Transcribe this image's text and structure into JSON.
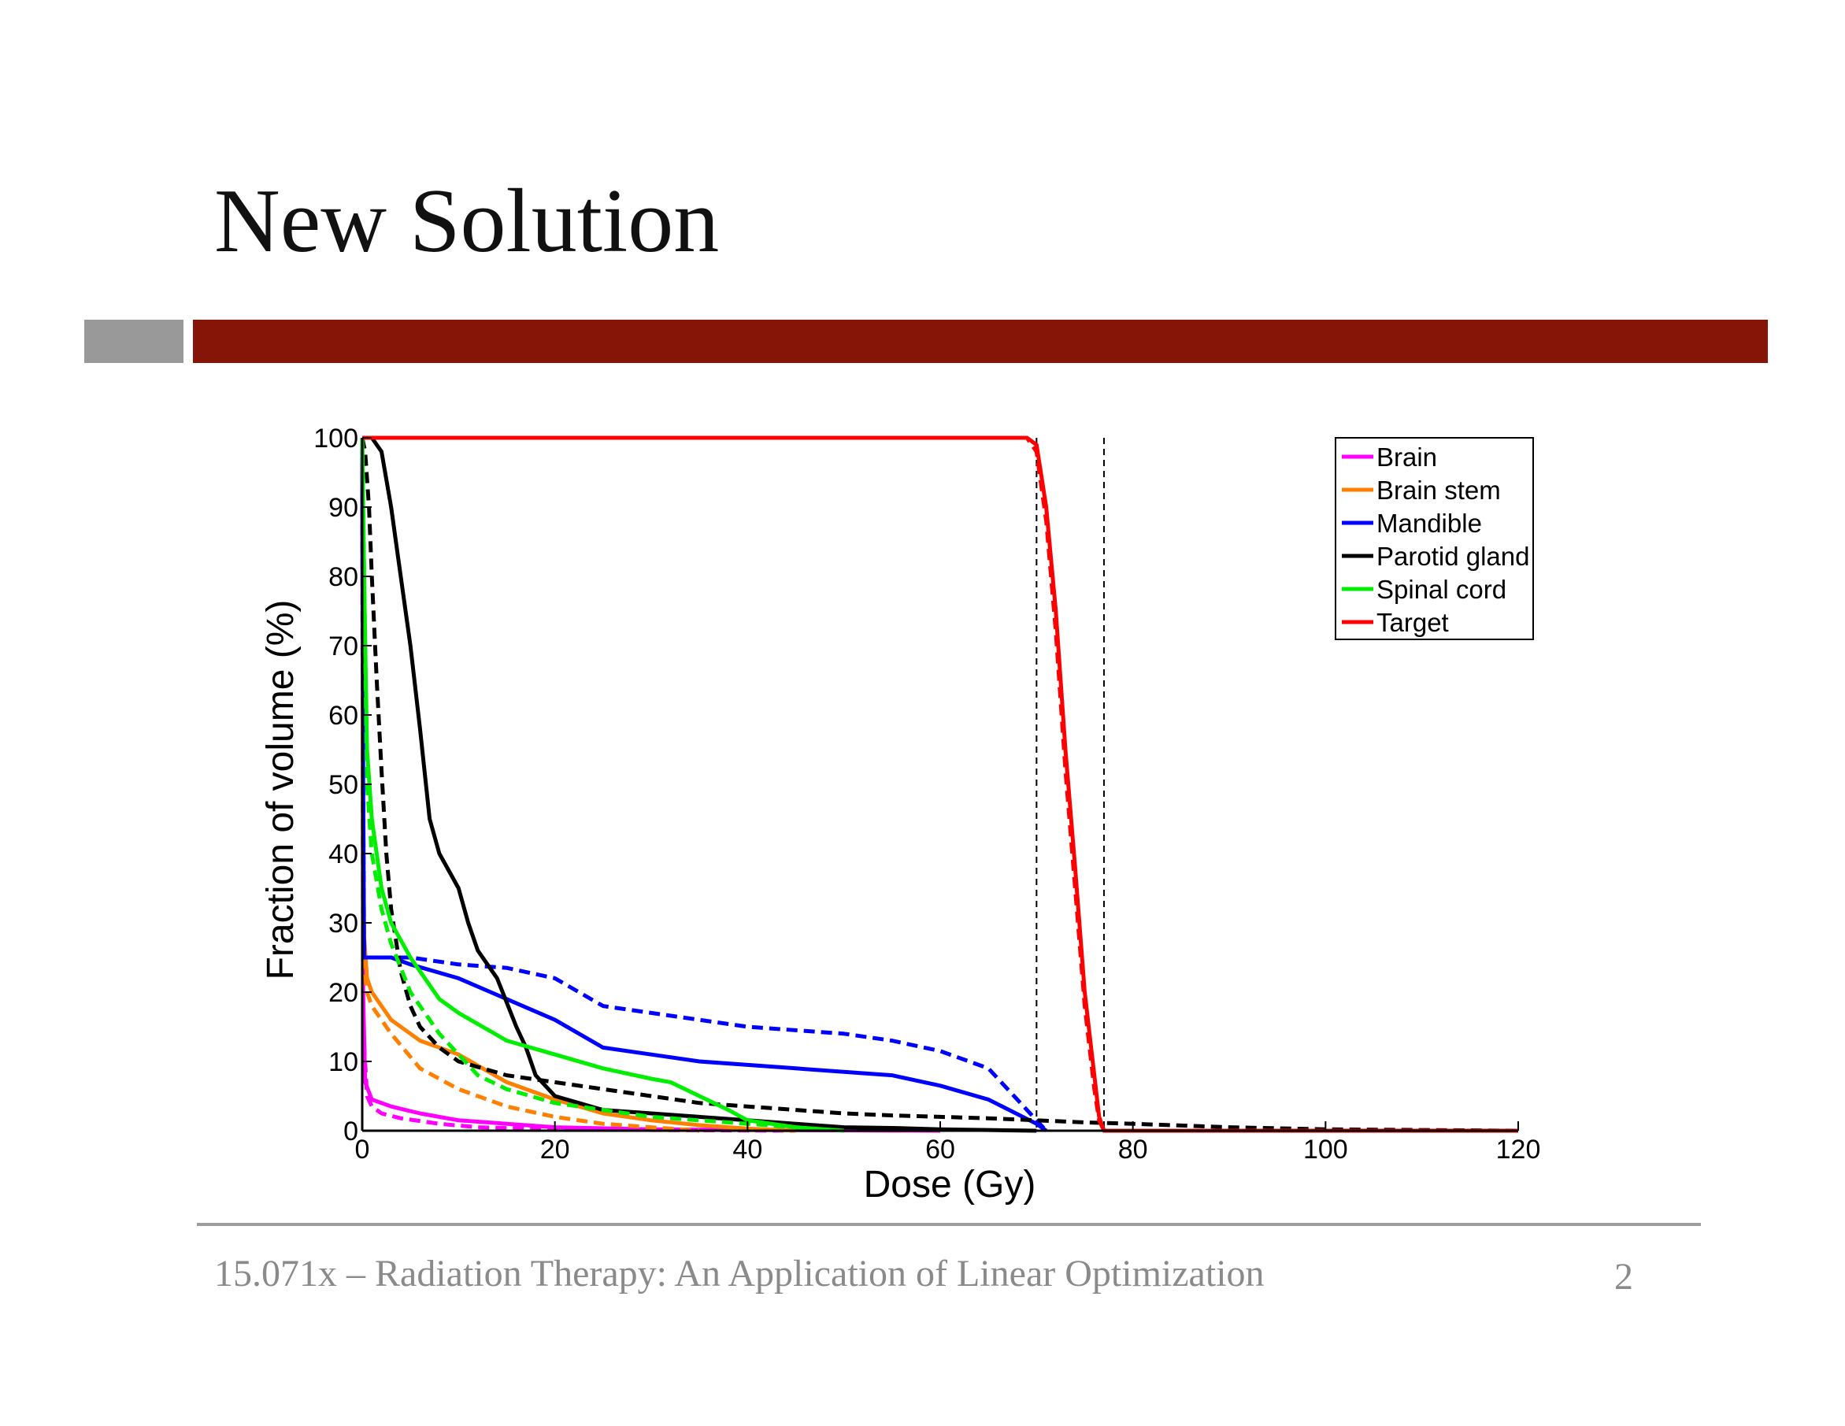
{
  "slide": {
    "title": "New Solution",
    "footer": "15.071x – Radiation Therapy: An Application of Linear Optimization",
    "page_number": "2"
  },
  "chart_data": {
    "type": "line",
    "title": "",
    "xlabel": "Dose (Gy)",
    "ylabel": "Fraction of volume (%)",
    "xlim": [
      0,
      120
    ],
    "ylim": [
      0,
      100
    ],
    "xticks": [
      0,
      20,
      40,
      60,
      80,
      100,
      120
    ],
    "yticks": [
      0,
      10,
      20,
      30,
      40,
      50,
      60,
      70,
      80,
      90,
      100
    ],
    "grid": false,
    "legend_position": "top-right",
    "colors": {
      "brain": "#ff00ff",
      "brain_stem": "#ff8000",
      "mandible": "#0000ff",
      "parotid": "#000000",
      "spinal_cord": "#00ee00",
      "target": "#ff0000"
    },
    "legend": [
      {
        "label": "Brain",
        "color": "#ff00ff"
      },
      {
        "label": "Brain stem",
        "color": "#ff8000"
      },
      {
        "label": "Mandible",
        "color": "#0000ff"
      },
      {
        "label": "Parotid gland",
        "color": "#000000"
      },
      {
        "label": "Spinal cord",
        "color": "#00ee00"
      },
      {
        "label": "Target",
        "color": "#ff0000"
      }
    ],
    "reference_lines": [
      {
        "x": 70,
        "style": "dashed",
        "color": "#000000"
      },
      {
        "x": 77,
        "style": "dashed",
        "color": "#000000"
      }
    ],
    "series": [
      {
        "color": "#ff00ff",
        "style": "solid",
        "points": [
          [
            0,
            100
          ],
          [
            0.1,
            20
          ],
          [
            0.3,
            7
          ],
          [
            1,
            4.5
          ],
          [
            3,
            3.5
          ],
          [
            6,
            2.5
          ],
          [
            10,
            1.5
          ],
          [
            15,
            1
          ],
          [
            20,
            0.5
          ],
          [
            30,
            0.2
          ],
          [
            40,
            0.1
          ],
          [
            60,
            0
          ]
        ]
      },
      {
        "color": "#ff00ff",
        "style": "dashed",
        "points": [
          [
            0,
            100
          ],
          [
            0.1,
            15
          ],
          [
            0.5,
            5
          ],
          [
            1,
            3.5
          ],
          [
            2,
            2.5
          ],
          [
            4,
            1.8
          ],
          [
            8,
            1
          ],
          [
            12,
            0.5
          ],
          [
            20,
            0.2
          ],
          [
            30,
            0.1
          ],
          [
            45,
            0
          ]
        ]
      },
      {
        "color": "#ff8000",
        "style": "solid",
        "points": [
          [
            0,
            100
          ],
          [
            0.1,
            30
          ],
          [
            0.5,
            22
          ],
          [
            1,
            20
          ],
          [
            3,
            16
          ],
          [
            6,
            13
          ],
          [
            10,
            11
          ],
          [
            15,
            7
          ],
          [
            20,
            4.5
          ],
          [
            25,
            2.5
          ],
          [
            30,
            1.5
          ],
          [
            35,
            0.8
          ],
          [
            40,
            0.3
          ],
          [
            45,
            0
          ]
        ]
      },
      {
        "color": "#ff8000",
        "style": "dashed",
        "points": [
          [
            0,
            100
          ],
          [
            0.1,
            25
          ],
          [
            0.5,
            20
          ],
          [
            1,
            18
          ],
          [
            3,
            14
          ],
          [
            6,
            9
          ],
          [
            10,
            6
          ],
          [
            15,
            3.5
          ],
          [
            20,
            2
          ],
          [
            25,
            1
          ],
          [
            30,
            0.5
          ],
          [
            35,
            0
          ]
        ]
      },
      {
        "color": "#0000ff",
        "style": "solid",
        "points": [
          [
            0,
            100
          ],
          [
            0.1,
            50
          ],
          [
            0.2,
            25
          ],
          [
            3,
            25
          ],
          [
            5,
            24
          ],
          [
            10,
            22
          ],
          [
            15,
            19
          ],
          [
            20,
            16
          ],
          [
            25,
            12
          ],
          [
            30,
            11
          ],
          [
            35,
            10
          ],
          [
            40,
            9.5
          ],
          [
            45,
            9
          ],
          [
            50,
            8.5
          ],
          [
            55,
            8
          ],
          [
            60,
            6.5
          ],
          [
            65,
            4.5
          ],
          [
            70,
            1
          ],
          [
            71,
            0
          ]
        ]
      },
      {
        "color": "#0000ff",
        "style": "dashed",
        "points": [
          [
            0,
            100
          ],
          [
            0.1,
            50
          ],
          [
            0.2,
            25
          ],
          [
            3,
            25
          ],
          [
            5,
            25
          ],
          [
            10,
            24
          ],
          [
            15,
            23.5
          ],
          [
            20,
            22
          ],
          [
            25,
            18
          ],
          [
            30,
            17
          ],
          [
            35,
            16
          ],
          [
            40,
            15
          ],
          [
            45,
            14.5
          ],
          [
            50,
            14
          ],
          [
            55,
            13
          ],
          [
            60,
            11.5
          ],
          [
            65,
            9
          ],
          [
            70,
            1.5
          ],
          [
            71,
            0
          ]
        ]
      },
      {
        "color": "#000000",
        "style": "solid",
        "points": [
          [
            0,
            100
          ],
          [
            1,
            100
          ],
          [
            2,
            98
          ],
          [
            3,
            90
          ],
          [
            4,
            80
          ],
          [
            5,
            70
          ],
          [
            6,
            58
          ],
          [
            7,
            45
          ],
          [
            8,
            40
          ],
          [
            10,
            35
          ],
          [
            11,
            30
          ],
          [
            12,
            26
          ],
          [
            14,
            22
          ],
          [
            16,
            15
          ],
          [
            17,
            12
          ],
          [
            18,
            8
          ],
          [
            20,
            5
          ],
          [
            25,
            3
          ],
          [
            30,
            2.5
          ],
          [
            35,
            2
          ],
          [
            40,
            1.5
          ],
          [
            45,
            1
          ],
          [
            50,
            0.5
          ],
          [
            55,
            0.4
          ],
          [
            60,
            0.2
          ],
          [
            65,
            0.1
          ],
          [
            70,
            0
          ]
        ]
      },
      {
        "color": "#000000",
        "style": "dashed",
        "points": [
          [
            0,
            100
          ],
          [
            0.3,
            98
          ],
          [
            0.7,
            90
          ],
          [
            1,
            80
          ],
          [
            1.5,
            65
          ],
          [
            2,
            52
          ],
          [
            2.5,
            40
          ],
          [
            3,
            32
          ],
          [
            4,
            23
          ],
          [
            5,
            18
          ],
          [
            6,
            15
          ],
          [
            8,
            12
          ],
          [
            10,
            10
          ],
          [
            15,
            8
          ],
          [
            20,
            7
          ],
          [
            25,
            6
          ],
          [
            30,
            5
          ],
          [
            35,
            4
          ],
          [
            40,
            3.5
          ],
          [
            45,
            3
          ],
          [
            50,
            2.5
          ],
          [
            55,
            2.2
          ],
          [
            60,
            2
          ],
          [
            65,
            1.8
          ],
          [
            70,
            1.5
          ],
          [
            75,
            1.2
          ],
          [
            80,
            1
          ],
          [
            90,
            0.5
          ],
          [
            100,
            0.2
          ],
          [
            120,
            0
          ]
        ]
      },
      {
        "color": "#00ee00",
        "style": "solid",
        "points": [
          [
            0,
            100
          ],
          [
            0.2,
            80
          ],
          [
            0.5,
            55
          ],
          [
            1,
            45
          ],
          [
            2,
            35
          ],
          [
            3,
            30
          ],
          [
            5,
            25
          ],
          [
            8,
            19
          ],
          [
            10,
            17
          ],
          [
            15,
            13
          ],
          [
            20,
            11
          ],
          [
            25,
            9
          ],
          [
            30,
            7.5
          ],
          [
            32,
            7
          ],
          [
            35,
            5
          ],
          [
            38,
            3
          ],
          [
            40,
            1.5
          ],
          [
            45,
            0.5
          ],
          [
            50,
            0
          ]
        ]
      },
      {
        "color": "#00ee00",
        "style": "dashed",
        "points": [
          [
            0,
            100
          ],
          [
            0.2,
            80
          ],
          [
            0.5,
            50
          ],
          [
            1,
            40
          ],
          [
            2,
            32
          ],
          [
            3,
            27
          ],
          [
            5,
            20
          ],
          [
            8,
            14
          ],
          [
            10,
            11
          ],
          [
            12,
            8
          ],
          [
            15,
            6
          ],
          [
            20,
            4
          ],
          [
            25,
            3
          ],
          [
            30,
            2
          ],
          [
            35,
            1.5
          ],
          [
            40,
            1
          ],
          [
            45,
            0.5
          ],
          [
            48,
            0
          ]
        ]
      },
      {
        "color": "#ff0000",
        "style": "solid",
        "points": [
          [
            0,
            100
          ],
          [
            69,
            100
          ],
          [
            70,
            99
          ],
          [
            71,
            90
          ],
          [
            72,
            75
          ],
          [
            73,
            55
          ],
          [
            74,
            38
          ],
          [
            75,
            20
          ],
          [
            76,
            8
          ],
          [
            76.5,
            2
          ],
          [
            77,
            0
          ],
          [
            120,
            0
          ]
        ]
      },
      {
        "color": "#ff0000",
        "style": "dashed",
        "points": [
          [
            0,
            100
          ],
          [
            69,
            100
          ],
          [
            70,
            98
          ],
          [
            71,
            88
          ],
          [
            72,
            72
          ],
          [
            73,
            52
          ],
          [
            74,
            35
          ],
          [
            75,
            18
          ],
          [
            76,
            6
          ],
          [
            76.5,
            1.5
          ],
          [
            77,
            0
          ],
          [
            120,
            0
          ]
        ]
      }
    ]
  }
}
